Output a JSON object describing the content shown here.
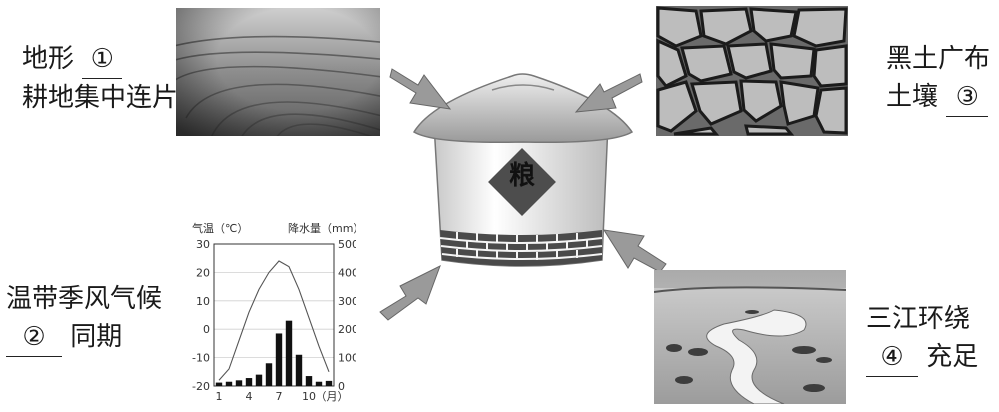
{
  "labels": {
    "terrain_line1": "地形",
    "terrain_blank": "①",
    "terrain_line2": "耕地集中连片",
    "soil_line1": "黑土广布",
    "soil_line2_prefix": "土壤",
    "soil_blank": "③",
    "climate_line1": "温带季风气候",
    "climate_blank": "②",
    "climate_line2_suffix": "同期",
    "river_line1": "三江环绕",
    "river_blank": "④",
    "river_line2_suffix": "充足"
  },
  "granary_sign": "粮",
  "chart": {
    "left_axis_title": "气温（℃）",
    "right_axis_title": "降水量（mm）",
    "month_unit": "（月）"
  },
  "chart_data": {
    "type": "bar",
    "categories": [
      "1",
      "2",
      "3",
      "4",
      "5",
      "6",
      "7",
      "8",
      "9",
      "10",
      "11",
      "12"
    ],
    "x_tick_labels": [
      "1",
      "4",
      "7",
      "10"
    ],
    "series": [
      {
        "type": "bar",
        "axis": "right",
        "values": [
          12,
          15,
          20,
          28,
          40,
          80,
          185,
          230,
          110,
          35,
          15,
          18
        ]
      },
      {
        "type": "line",
        "axis": "left",
        "values": [
          -18,
          -14,
          -4,
          6,
          14,
          20,
          24,
          22,
          14,
          4,
          -6,
          -15
        ]
      }
    ],
    "y_left_ticks": [
      "30",
      "20",
      "10",
      "0",
      "-10",
      "-20"
    ],
    "y_right_ticks": [
      "500",
      "400",
      "300",
      "200",
      "100",
      "0"
    ],
    "ylim_left": [
      -20,
      30
    ],
    "ylim_right": [
      0,
      500
    ],
    "xlabel": "（月）",
    "ylabel_left": "气温（℃）",
    "ylabel_right": "降水量（mm）",
    "grid": true
  }
}
